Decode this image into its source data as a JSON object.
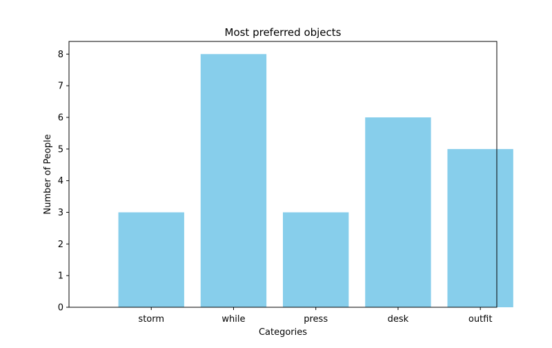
{
  "chart_data": {
    "type": "bar",
    "title": "Most preferred objects",
    "xlabel": "Categories",
    "ylabel": "Number of People",
    "categories": [
      "storm",
      "while",
      "press",
      "desk",
      "outfit"
    ],
    "values": [
      3,
      8,
      3,
      6,
      5
    ],
    "ylim": [
      0,
      8.4
    ],
    "yticks": [
      0,
      1,
      2,
      3,
      4,
      5,
      6,
      7,
      8
    ],
    "grid": false,
    "legend": "none",
    "bar_color": "#87CEEB",
    "axis_color": "#000000"
  }
}
